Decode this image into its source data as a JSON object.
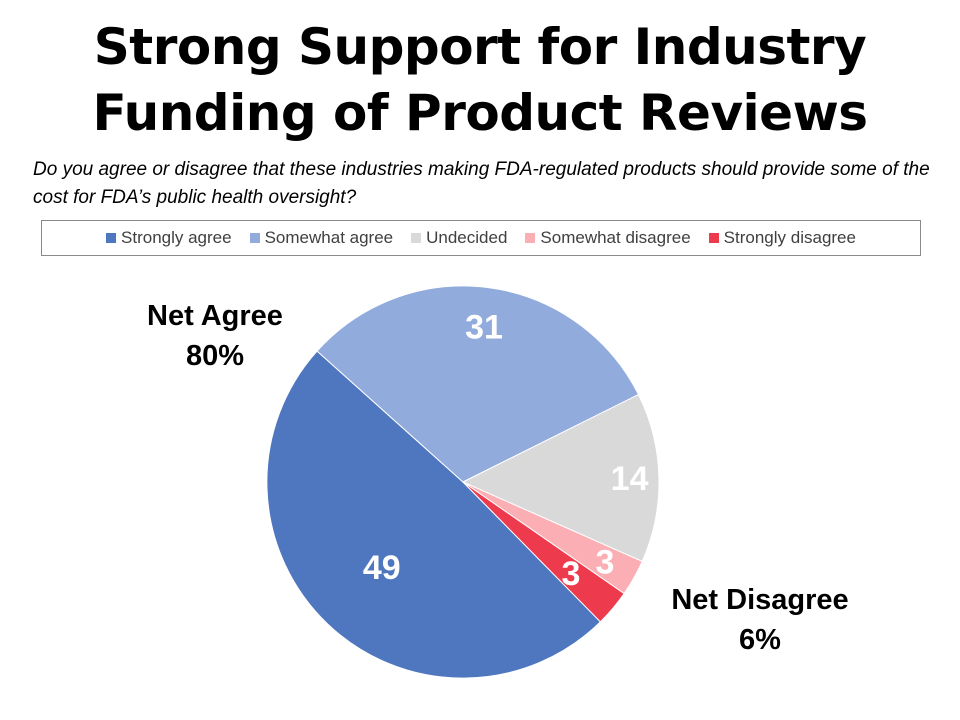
{
  "title_line1": "Strong Support for Industry",
  "title_line2": "Funding of Product Reviews",
  "subtitle": "Do you agree or disagree that these industries making FDA-regulated products should provide some of the cost for FDA’s public health oversight?",
  "net_agree": {
    "label": "Net Agree",
    "value": "80%"
  },
  "net_disagree": {
    "label": "Net Disagree",
    "value": "6%"
  },
  "chart_data": {
    "type": "pie",
    "title": "Strong Support for Industry Funding of Product Reviews",
    "categories": [
      "Strongly agree",
      "Somewhat agree",
      "Undecided",
      "Somewhat disagree",
      "Strongly disagree"
    ],
    "values": [
      49,
      31,
      14,
      3,
      3
    ],
    "labels": [
      "49",
      "31",
      "14",
      "3",
      "3"
    ],
    "colors": [
      "#4f77c0",
      "#91abdc",
      "#d9d9d9",
      "#fbaeb3",
      "#ee3a4d"
    ],
    "legend_position": "top"
  }
}
